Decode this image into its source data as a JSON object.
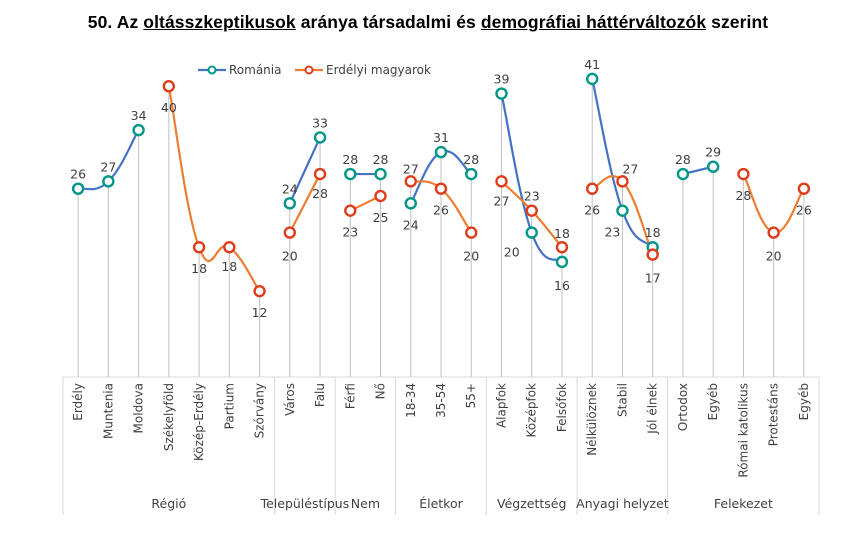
{
  "title": {
    "number": "50.",
    "part1": "Az",
    "part2_underlined": "oltásszkeptikusok",
    "part3": "aránya társadalmi és",
    "part4_underlined": "demográfiai háttérváltozók",
    "part5": "szerint"
  },
  "chart_data": {
    "type": "line",
    "title": "50. Az oltásszkeptikusok aránya társadalmi és demográfiai háttérváltozók szerint",
    "xlabel": "",
    "ylabel": "",
    "ylim": [
      0,
      41
    ],
    "grid": false,
    "legend_position": "top",
    "categories": [
      "Erdély",
      "Muntenia",
      "Moldova",
      "Székelyföld",
      "Közép-Erdély",
      "Partium",
      "Szórvány",
      "Város",
      "Falu",
      "Férfi",
      "Nő",
      "18-34",
      "35-54",
      "55+",
      "Alapfok",
      "Középfok",
      "Felsőfok",
      "Nélkülöznek",
      "Stabil",
      "Jól élnek",
      "Ortodox",
      "Egyéb",
      "Római katolikus",
      "Protestáns",
      "Egyéb"
    ],
    "groups": [
      {
        "name": "Régió",
        "start": 0,
        "end": 6
      },
      {
        "name": "Településtípus",
        "start": 7,
        "end": 8
      },
      {
        "name": "Nem",
        "start": 9,
        "end": 10
      },
      {
        "name": "Életkor",
        "start": 11,
        "end": 13
      },
      {
        "name": "Végzettség",
        "start": 14,
        "end": 16
      },
      {
        "name": "Anyagi helyzet",
        "start": 17,
        "end": 19
      },
      {
        "name": "Felekezet",
        "start": 20,
        "end": 24
      }
    ],
    "series": [
      {
        "name": "Románia",
        "line_color": "#4472C4",
        "marker_color": "#009688",
        "values": [
          26,
          27,
          34,
          null,
          null,
          null,
          null,
          24,
          33,
          28,
          28,
          24,
          31,
          28,
          39,
          20,
          16,
          41,
          23,
          18,
          28,
          29,
          null,
          null,
          null
        ]
      },
      {
        "name": "Erdélyi magyarok",
        "line_color": "#ED7D31",
        "marker_color": "#E03C1B",
        "values": [
          null,
          null,
          null,
          40,
          18,
          18,
          12,
          20,
          28,
          23,
          25,
          27,
          26,
          20,
          27,
          23,
          18,
          26,
          27,
          17,
          null,
          null,
          28,
          20,
          26
        ]
      }
    ],
    "segments": [
      [
        0,
        2
      ],
      [
        3,
        6
      ],
      [
        7,
        8
      ],
      [
        9,
        10
      ],
      [
        11,
        13
      ],
      [
        14,
        16
      ],
      [
        17,
        19
      ],
      [
        20,
        21
      ],
      [
        22,
        24
      ]
    ]
  }
}
